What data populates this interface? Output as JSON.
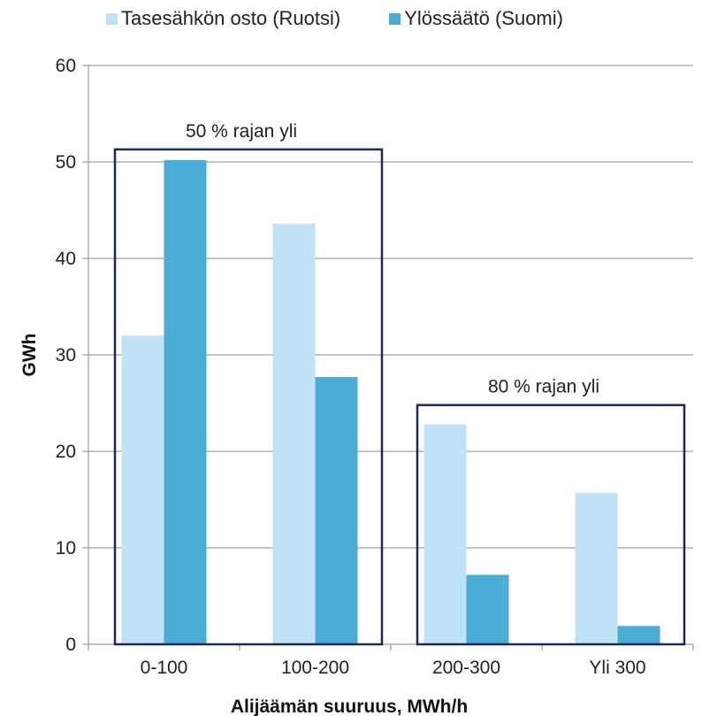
{
  "chart_data": {
    "type": "bar",
    "categories": [
      "0-100",
      "100-200",
      "200-300",
      "Yli 300"
    ],
    "series": [
      {
        "name": "Tasesähkön osto (Ruotsi)",
        "values": [
          32.0,
          43.6,
          22.8,
          15.7
        ],
        "color": "#bfe3f5"
      },
      {
        "name": "Ylössäätö (Suomi)",
        "values": [
          50.2,
          27.7,
          7.2,
          1.9
        ],
        "color": "#4bacd6"
      }
    ],
    "xlabel": "Alijäämän suuruus, MWh/h",
    "ylabel": "GWh",
    "ylim": [
      0,
      60
    ],
    "yticks": [
      0,
      10,
      20,
      30,
      40,
      50,
      60
    ],
    "grid": true,
    "legend_position": "top",
    "annotations": [
      {
        "text": "50 % rajan yli",
        "categories": [
          "0-100",
          "100-200"
        ],
        "box_top": 51.3
      },
      {
        "text": "80 % rajan yli",
        "categories": [
          "200-300",
          "Yli 300"
        ],
        "box_top": 24.8
      }
    ],
    "box_color": "#1b2a5c",
    "gridline_color": "#8a8a8a"
  }
}
